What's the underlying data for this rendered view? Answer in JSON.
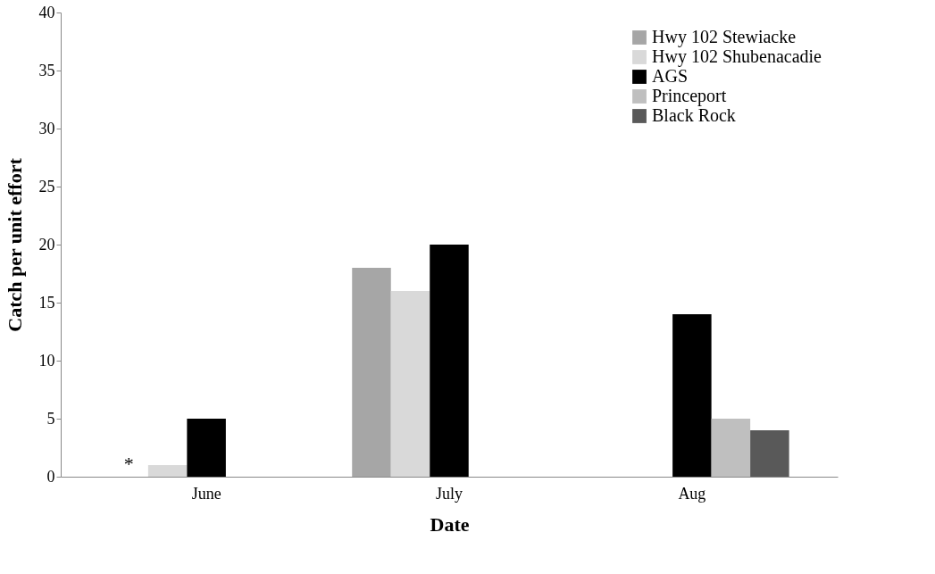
{
  "chart_data": {
    "type": "bar",
    "xlabel": "Date",
    "ylabel": "Catch per unit effort",
    "categories": [
      "June",
      "July",
      "Aug"
    ],
    "series": [
      {
        "name": "Hwy 102 Stewiacke",
        "color": "#a6a6a6",
        "values": [
          null,
          18,
          null
        ]
      },
      {
        "name": "Hwy 102 Shubenacadie",
        "color": "#d9d9d9",
        "values": [
          1,
          16,
          null
        ]
      },
      {
        "name": "AGS",
        "color": "#000000",
        "values": [
          5,
          20,
          14
        ]
      },
      {
        "name": "Princeport",
        "color": "#bfbfbf",
        "values": [
          null,
          null,
          5
        ]
      },
      {
        "name": "Black Rock",
        "color": "#595959",
        "values": [
          null,
          null,
          4
        ]
      }
    ],
    "annotations": [
      "*"
    ],
    "ylim": [
      0,
      40
    ],
    "yticks": [
      0,
      5,
      10,
      15,
      20,
      25,
      30,
      35,
      40
    ],
    "grid": false,
    "legend": "top right"
  }
}
